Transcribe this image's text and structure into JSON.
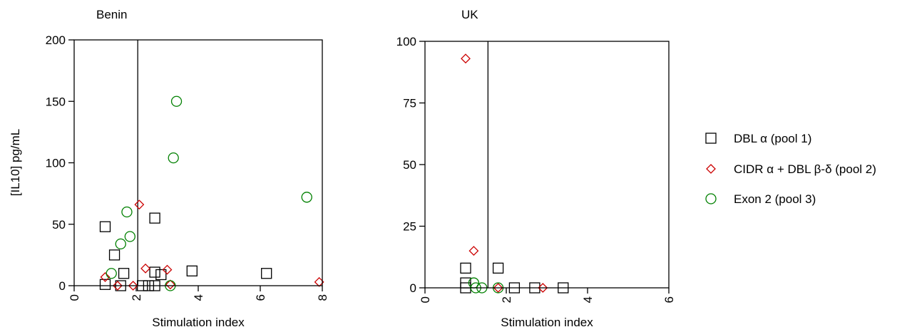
{
  "chart_data": [
    {
      "type": "scatter",
      "title": "Benin",
      "xlabel": "Stimulation index",
      "ylabel": "[IL10] pg/mL",
      "xlim": [
        0,
        8
      ],
      "ylim": [
        0,
        200
      ],
      "xticks": [
        "0",
        "2",
        "4",
        "6",
        "8"
      ],
      "yticks": [
        "0",
        "50",
        "100",
        "150",
        "200"
      ],
      "threshold_x": 2.05,
      "series": [
        {
          "name": "DBL α (pool 1)",
          "marker": "square",
          "color": "#000000",
          "points": [
            [
              1.0,
              48
            ],
            [
              1.0,
              1
            ],
            [
              1.3,
              25
            ],
            [
              1.5,
              0
            ],
            [
              1.6,
              10
            ],
            [
              2.2,
              0
            ],
            [
              2.4,
              0
            ],
            [
              2.6,
              11
            ],
            [
              2.6,
              0
            ],
            [
              2.6,
              55
            ],
            [
              2.8,
              9
            ],
            [
              3.8,
              12
            ],
            [
              6.2,
              10
            ]
          ]
        },
        {
          "name": "CIDR α + DBL β-δ (pool 2)",
          "marker": "diamond",
          "color": "#cc0000",
          "points": [
            [
              1.0,
              7
            ],
            [
              1.4,
              0
            ],
            [
              1.9,
              0
            ],
            [
              2.1,
              66
            ],
            [
              2.3,
              14
            ],
            [
              3.0,
              13
            ],
            [
              3.1,
              1
            ],
            [
              7.9,
              3
            ]
          ]
        },
        {
          "name": "Exon 2 (pool 3)",
          "marker": "circle",
          "color": "#008000",
          "points": [
            [
              1.2,
              10
            ],
            [
              1.5,
              34
            ],
            [
              1.7,
              60
            ],
            [
              1.8,
              40
            ],
            [
              3.1,
              0
            ],
            [
              3.2,
              104
            ],
            [
              3.3,
              150
            ],
            [
              7.5,
              72
            ]
          ]
        }
      ]
    },
    {
      "type": "scatter",
      "title": "UK",
      "xlabel": "Stimulation index",
      "ylabel": "",
      "xlim": [
        0,
        6
      ],
      "ylim": [
        0,
        100
      ],
      "xticks": [
        "0",
        "2",
        "4",
        "6"
      ],
      "yticks": [
        "0",
        "25",
        "50",
        "75",
        "100"
      ],
      "threshold_x": 1.55,
      "series": [
        {
          "name": "DBL α (pool 1)",
          "marker": "square",
          "color": "#000000",
          "points": [
            [
              1.0,
              8
            ],
            [
              1.0,
              2
            ],
            [
              1.0,
              0
            ],
            [
              1.8,
              8
            ],
            [
              2.2,
              0
            ],
            [
              2.7,
              0
            ],
            [
              3.4,
              0
            ]
          ]
        },
        {
          "name": "CIDR α + DBL β-δ (pool 2)",
          "marker": "diamond",
          "color": "#cc0000",
          "points": [
            [
              1.0,
              93
            ],
            [
              1.2,
              15
            ],
            [
              1.8,
              0
            ],
            [
              2.9,
              0
            ]
          ]
        },
        {
          "name": "Exon 2 (pool 3)",
          "marker": "circle",
          "color": "#008000",
          "points": [
            [
              1.2,
              2
            ],
            [
              1.25,
              0
            ],
            [
              1.4,
              0
            ],
            [
              1.8,
              0
            ]
          ]
        }
      ]
    }
  ],
  "legend": {
    "placement": "right",
    "items": [
      {
        "label": "DBL α (pool 1)",
        "marker": "square",
        "color": "#000000"
      },
      {
        "label": "CIDR α + DBL β-δ (pool 2)",
        "marker": "diamond",
        "color": "#cc0000"
      },
      {
        "label": "Exon 2 (pool 3)",
        "marker": "circle",
        "color": "#008000"
      }
    ]
  }
}
